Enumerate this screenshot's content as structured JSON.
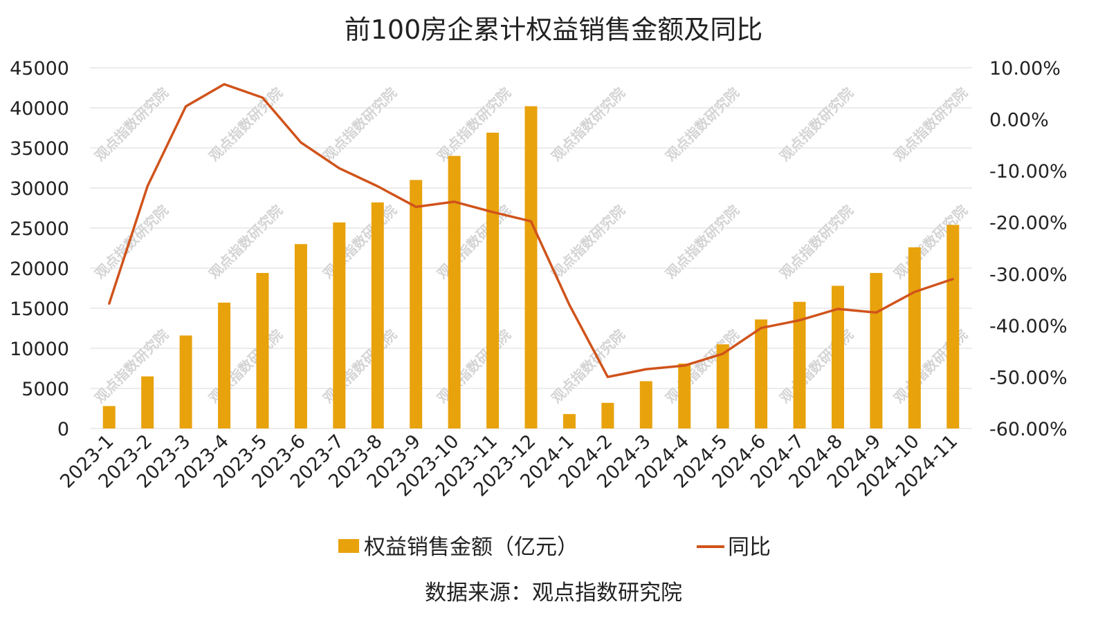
{
  "chart_data": {
    "type": "bar+line",
    "title": "前100房企累计权益销售金额及同比",
    "categories": [
      "2023-1",
      "2023-2",
      "2023-3",
      "2023-4",
      "2023-5",
      "2023-6",
      "2023-7",
      "2023-8",
      "2023-9",
      "2023-10",
      "2023-11",
      "2023-12",
      "2024-1",
      "2024-2",
      "2024-3",
      "2024-4",
      "2024-5",
      "2024-6",
      "2024-7",
      "2024-8",
      "2024-9",
      "2024-10",
      "2024-11"
    ],
    "series": [
      {
        "name": "权益销售金额（亿元）",
        "type": "bar",
        "axis": "left",
        "values": [
          2800,
          6500,
          11600,
          15700,
          19400,
          23000,
          25700,
          28200,
          31000,
          34000,
          36900,
          40200,
          1800,
          3200,
          5900,
          8100,
          10500,
          13600,
          15800,
          17800,
          19400,
          22600,
          25400
        ]
      },
      {
        "name": "同比",
        "type": "line",
        "axis": "right",
        "values": [
          -35.8,
          -13.0,
          2.5,
          6.8,
          4.2,
          -4.5,
          -9.5,
          -13.0,
          -17.0,
          -16.0,
          -18.0,
          -19.8,
          -36.0,
          -50.0,
          -48.5,
          -47.8,
          -45.5,
          -40.5,
          -39.0,
          -36.8,
          -37.5,
          -33.5,
          -31.0
        ]
      }
    ],
    "left_axis": {
      "ylim": [
        0,
        45000
      ],
      "ticks": [
        "0",
        "5000",
        "10000",
        "15000",
        "20000",
        "25000",
        "30000",
        "35000",
        "40000",
        "45000"
      ]
    },
    "right_axis": {
      "ylim": [
        -60,
        10
      ],
      "ticks": [
        "-60.00%",
        "-50.00%",
        "-40.00%",
        "-30.00%",
        "-20.00%",
        "-10.00%",
        "0.00%",
        "10.00%"
      ]
    },
    "grid": true,
    "legend_position": "bottom",
    "colors": {
      "bar": "#E8A20C",
      "line": "#D0531B",
      "grid": "#d9d9d9"
    },
    "source": "数据来源：观点指数研究院"
  },
  "watermark": "观点指数研究院"
}
